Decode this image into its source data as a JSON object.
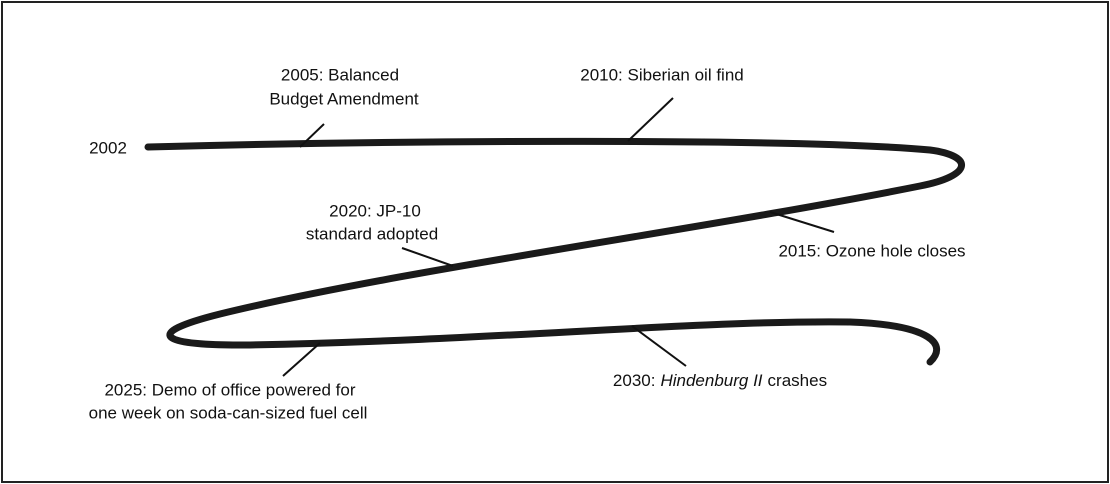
{
  "start_label": "2002",
  "events": [
    {
      "lines": [
        "2005: Balanced",
        "Budget Amendment"
      ]
    },
    {
      "lines": [
        "2010: Siberian oil find"
      ]
    },
    {
      "lines": [
        "2015: Ozone hole closes"
      ]
    },
    {
      "lines": [
        "2020: JP-10",
        "standard adopted"
      ]
    },
    {
      "lines": [
        "2025: Demo of office powered for",
        "one week on soda-can-sized fuel cell"
      ]
    },
    {
      "year": "2030:",
      "italic": "Hindenburg II",
      "rest": "crashes"
    }
  ]
}
